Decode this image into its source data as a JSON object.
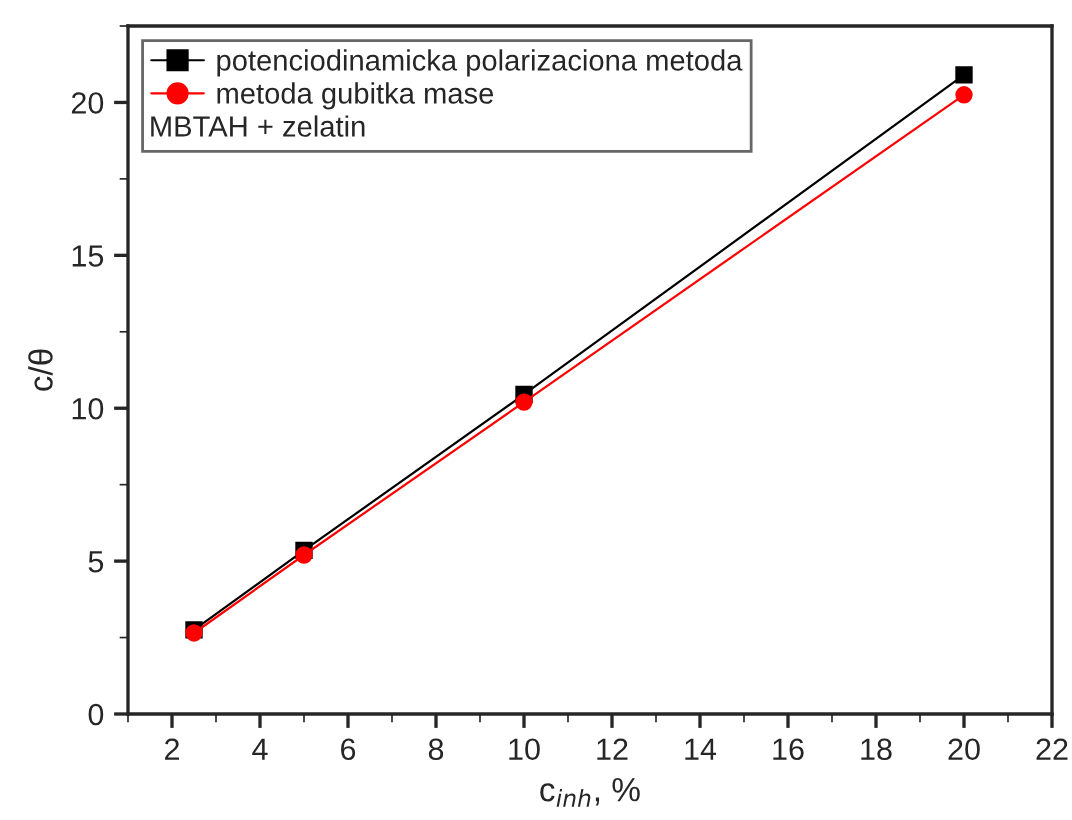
{
  "chart_data": {
    "type": "line",
    "xlabel": "c$_{inh}$, %",
    "ylabel": "c/θ",
    "x": [
      2.5,
      5,
      10,
      20
    ],
    "series": [
      {
        "name": "potenciodinamicka polarizaciona metoda",
        "color": "#000000",
        "marker": "square",
        "values": [
          2.75,
          5.35,
          10.45,
          20.9
        ]
      },
      {
        "name": "metoda gubitka mase",
        "color": "#ff0000",
        "marker": "circle",
        "values": [
          2.65,
          5.2,
          10.2,
          20.25
        ]
      }
    ],
    "annotations": [
      "MBTAH + zelatin"
    ],
    "xlim": [
      1,
      22
    ],
    "xticks": [
      2,
      4,
      6,
      8,
      10,
      12,
      14,
      16,
      18,
      20,
      22
    ],
    "ylim": [
      0,
      22.5
    ],
    "yticks": [
      0,
      5,
      10,
      15,
      20
    ],
    "legend": "top left",
    "grid": false
  }
}
